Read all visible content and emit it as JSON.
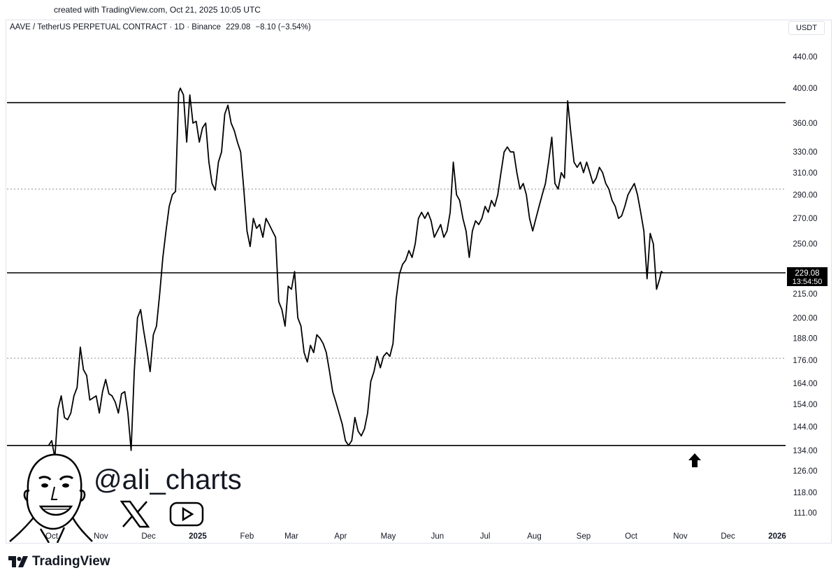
{
  "created_line": "created with TradingView.com, Oct 21, 2025 10:05 UTC",
  "symbol_header": {
    "symbol": "AAVE / TetherUS PERPETUAL CONTRACT · 1D · Binance",
    "price": "229.08",
    "change": "−8.10 (−3.54%)"
  },
  "currency_button": "USDT",
  "price_tag": {
    "price": "229.08",
    "countdown": "13:54:50"
  },
  "watermark": {
    "handle": "@ali_charts",
    "icons": [
      "x-logo-icon",
      "youtube-icon"
    ]
  },
  "brand": "TradingView",
  "arrow_icon": "up-arrow-icon",
  "chart_data": {
    "type": "line",
    "title": "",
    "xlabel": "",
    "ylabel": "",
    "yscale": "log",
    "ylim": [
      106,
      470
    ],
    "y_ticks": [
      "440.00",
      "400.00",
      "360.00",
      "330.00",
      "310.00",
      "290.00",
      "270.00",
      "250.00",
      "215.00",
      "200.00",
      "188.00",
      "176.00",
      "164.00",
      "154.00",
      "144.00",
      "134.00",
      "126.00",
      "118.00",
      "111.00"
    ],
    "x_ticks": [
      {
        "label": "Oct",
        "date": "2024-10-01"
      },
      {
        "label": "Nov",
        "date": "2024-11-01"
      },
      {
        "label": "Dec",
        "date": "2024-12-01"
      },
      {
        "label": "2025",
        "date": "2025-01-01",
        "bold": true
      },
      {
        "label": "Feb",
        "date": "2025-02-01"
      },
      {
        "label": "Mar",
        "date": "2025-03-01"
      },
      {
        "label": "Apr",
        "date": "2025-04-01"
      },
      {
        "label": "May",
        "date": "2025-05-01"
      },
      {
        "label": "Jun",
        "date": "2025-06-01"
      },
      {
        "label": "Jul",
        "date": "2025-07-01"
      },
      {
        "label": "Aug",
        "date": "2025-08-01"
      },
      {
        "label": "Sep",
        "date": "2025-09-01"
      },
      {
        "label": "Oct",
        "date": "2025-10-01"
      },
      {
        "label": "Nov",
        "date": "2025-11-01"
      },
      {
        "label": "Dec",
        "date": "2025-12-01"
      },
      {
        "label": "2026",
        "date": "2026-01-01",
        "bold": true
      }
    ],
    "horizontal_lines": [
      {
        "value": 383,
        "style": "solid"
      },
      {
        "value": 295,
        "style": "dotted"
      },
      {
        "value": 229.08,
        "style": "solid"
      },
      {
        "value": 177,
        "style": "dotted"
      },
      {
        "value": 136,
        "style": "solid"
      }
    ],
    "series": [
      {
        "points": [
          [
            "2024-09-29",
            136
          ],
          [
            "2024-10-01",
            138
          ],
          [
            "2024-10-03",
            131
          ],
          [
            "2024-10-05",
            152
          ],
          [
            "2024-10-07",
            158
          ],
          [
            "2024-10-09",
            148
          ],
          [
            "2024-10-11",
            147
          ],
          [
            "2024-10-13",
            150
          ],
          [
            "2024-10-15",
            158
          ],
          [
            "2024-10-17",
            162
          ],
          [
            "2024-10-19",
            183
          ],
          [
            "2024-10-21",
            171
          ],
          [
            "2024-10-23",
            168
          ],
          [
            "2024-10-25",
            156
          ],
          [
            "2024-10-27",
            157
          ],
          [
            "2024-10-29",
            158
          ],
          [
            "2024-10-31",
            150
          ],
          [
            "2024-11-02",
            160
          ],
          [
            "2024-11-04",
            166
          ],
          [
            "2024-11-06",
            159
          ],
          [
            "2024-11-08",
            158
          ],
          [
            "2024-11-10",
            155
          ],
          [
            "2024-11-12",
            150
          ],
          [
            "2024-11-14",
            159
          ],
          [
            "2024-11-16",
            160
          ],
          [
            "2024-11-18",
            150
          ],
          [
            "2024-11-20",
            134
          ],
          [
            "2024-11-22",
            170
          ],
          [
            "2024-11-24",
            200
          ],
          [
            "2024-11-26",
            205
          ],
          [
            "2024-11-28",
            192
          ],
          [
            "2024-11-30",
            181
          ],
          [
            "2024-12-02",
            170
          ],
          [
            "2024-12-04",
            190
          ],
          [
            "2024-12-06",
            195
          ],
          [
            "2024-12-08",
            215
          ],
          [
            "2024-12-10",
            240
          ],
          [
            "2024-12-12",
            260
          ],
          [
            "2024-12-14",
            280
          ],
          [
            "2024-12-16",
            290
          ],
          [
            "2024-12-18",
            293
          ],
          [
            "2024-12-20",
            395
          ],
          [
            "2024-12-21",
            400
          ],
          [
            "2024-12-23",
            392
          ],
          [
            "2024-12-25",
            340
          ],
          [
            "2024-12-27",
            392
          ],
          [
            "2024-12-29",
            360
          ],
          [
            "2024-12-31",
            362
          ],
          [
            "2025-01-02",
            340
          ],
          [
            "2025-01-04",
            355
          ],
          [
            "2025-01-06",
            360
          ],
          [
            "2025-01-08",
            320
          ],
          [
            "2025-01-10",
            300
          ],
          [
            "2025-01-12",
            294
          ],
          [
            "2025-01-14",
            320
          ],
          [
            "2025-01-16",
            330
          ],
          [
            "2025-01-18",
            370
          ],
          [
            "2025-01-20",
            380
          ],
          [
            "2025-01-22",
            360
          ],
          [
            "2025-01-24",
            352
          ],
          [
            "2025-01-26",
            340
          ],
          [
            "2025-01-28",
            330
          ],
          [
            "2025-01-30",
            295
          ],
          [
            "2025-02-01",
            260
          ],
          [
            "2025-02-03",
            248
          ],
          [
            "2025-02-05",
            270
          ],
          [
            "2025-02-07",
            262
          ],
          [
            "2025-02-09",
            265
          ],
          [
            "2025-02-11",
            255
          ],
          [
            "2025-02-13",
            270
          ],
          [
            "2025-02-15",
            265
          ],
          [
            "2025-02-17",
            260
          ],
          [
            "2025-02-19",
            255
          ],
          [
            "2025-02-21",
            210
          ],
          [
            "2025-02-23",
            205
          ],
          [
            "2025-02-25",
            195
          ],
          [
            "2025-02-27",
            220
          ],
          [
            "2025-03-01",
            218
          ],
          [
            "2025-03-03",
            230
          ],
          [
            "2025-03-05",
            200
          ],
          [
            "2025-03-07",
            195
          ],
          [
            "2025-03-09",
            180
          ],
          [
            "2025-03-11",
            175
          ],
          [
            "2025-03-13",
            184
          ],
          [
            "2025-03-15",
            180
          ],
          [
            "2025-03-17",
            190
          ],
          [
            "2025-03-19",
            188
          ],
          [
            "2025-03-21",
            185
          ],
          [
            "2025-03-23",
            180
          ],
          [
            "2025-03-25",
            170
          ],
          [
            "2025-03-27",
            160
          ],
          [
            "2025-03-29",
            155
          ],
          [
            "2025-03-31",
            150
          ],
          [
            "2025-04-02",
            145
          ],
          [
            "2025-04-04",
            138
          ],
          [
            "2025-04-06",
            136
          ],
          [
            "2025-04-08",
            138
          ],
          [
            "2025-04-10",
            148
          ],
          [
            "2025-04-12",
            142
          ],
          [
            "2025-04-14",
            140
          ],
          [
            "2025-04-16",
            143
          ],
          [
            "2025-04-18",
            150
          ],
          [
            "2025-04-20",
            165
          ],
          [
            "2025-04-22",
            170
          ],
          [
            "2025-04-24",
            178
          ],
          [
            "2025-04-26",
            172
          ],
          [
            "2025-04-28",
            178
          ],
          [
            "2025-04-30",
            180
          ],
          [
            "2025-05-02",
            178
          ],
          [
            "2025-05-04",
            185
          ],
          [
            "2025-05-06",
            212
          ],
          [
            "2025-05-08",
            228
          ],
          [
            "2025-05-10",
            235
          ],
          [
            "2025-05-12",
            238
          ],
          [
            "2025-05-14",
            245
          ],
          [
            "2025-05-16",
            240
          ],
          [
            "2025-05-18",
            250
          ],
          [
            "2025-05-20",
            270
          ],
          [
            "2025-05-22",
            275
          ],
          [
            "2025-05-24",
            270
          ],
          [
            "2025-05-26",
            275
          ],
          [
            "2025-05-28",
            268
          ],
          [
            "2025-05-30",
            255
          ],
          [
            "2025-06-01",
            260
          ],
          [
            "2025-06-03",
            265
          ],
          [
            "2025-06-05",
            255
          ],
          [
            "2025-06-07",
            260
          ],
          [
            "2025-06-09",
            275
          ],
          [
            "2025-06-11",
            320
          ],
          [
            "2025-06-13",
            290
          ],
          [
            "2025-06-15",
            285
          ],
          [
            "2025-06-17",
            270
          ],
          [
            "2025-06-19",
            260
          ],
          [
            "2025-06-21",
            240
          ],
          [
            "2025-06-23",
            260
          ],
          [
            "2025-06-25",
            268
          ],
          [
            "2025-06-27",
            265
          ],
          [
            "2025-06-29",
            270
          ],
          [
            "2025-07-01",
            280
          ],
          [
            "2025-07-03",
            275
          ],
          [
            "2025-07-05",
            285
          ],
          [
            "2025-07-07",
            280
          ],
          [
            "2025-07-09",
            290
          ],
          [
            "2025-07-11",
            310
          ],
          [
            "2025-07-13",
            330
          ],
          [
            "2025-07-15",
            335
          ],
          [
            "2025-07-17",
            330
          ],
          [
            "2025-07-19",
            330
          ],
          [
            "2025-07-21",
            310
          ],
          [
            "2025-07-23",
            295
          ],
          [
            "2025-07-25",
            300
          ],
          [
            "2025-07-27",
            290
          ],
          [
            "2025-07-29",
            270
          ],
          [
            "2025-07-31",
            260
          ],
          [
            "2025-08-02",
            270
          ],
          [
            "2025-08-04",
            280
          ],
          [
            "2025-08-06",
            290
          ],
          [
            "2025-08-08",
            300
          ],
          [
            "2025-08-10",
            320
          ],
          [
            "2025-08-12",
            345
          ],
          [
            "2025-08-14",
            300
          ],
          [
            "2025-08-16",
            295
          ],
          [
            "2025-08-18",
            310
          ],
          [
            "2025-08-20",
            305
          ],
          [
            "2025-08-22",
            385
          ],
          [
            "2025-08-24",
            350
          ],
          [
            "2025-08-26",
            320
          ],
          [
            "2025-08-28",
            315
          ],
          [
            "2025-08-30",
            320
          ],
          [
            "2025-09-01",
            310
          ],
          [
            "2025-09-03",
            320
          ],
          [
            "2025-09-05",
            310
          ],
          [
            "2025-09-07",
            300
          ],
          [
            "2025-09-09",
            305
          ],
          [
            "2025-09-11",
            315
          ],
          [
            "2025-09-13",
            310
          ],
          [
            "2025-09-15",
            300
          ],
          [
            "2025-09-17",
            295
          ],
          [
            "2025-09-19",
            285
          ],
          [
            "2025-09-21",
            280
          ],
          [
            "2025-09-23",
            270
          ],
          [
            "2025-09-25",
            272
          ],
          [
            "2025-09-27",
            280
          ],
          [
            "2025-09-29",
            290
          ],
          [
            "2025-10-01",
            295
          ],
          [
            "2025-10-03",
            300
          ],
          [
            "2025-10-05",
            290
          ],
          [
            "2025-10-07",
            275
          ],
          [
            "2025-10-09",
            260
          ],
          [
            "2025-10-11",
            225
          ],
          [
            "2025-10-13",
            258
          ],
          [
            "2025-10-15",
            250
          ],
          [
            "2025-10-17",
            218
          ],
          [
            "2025-10-19",
            225
          ],
          [
            "2025-10-20",
            230
          ],
          [
            "2025-10-21",
            229.08
          ]
        ]
      }
    ],
    "price_axis_range": {
      "min_label": "111.00",
      "max_label": "440.00"
    },
    "grid": false,
    "legend": "none",
    "line_color": "#000000"
  }
}
